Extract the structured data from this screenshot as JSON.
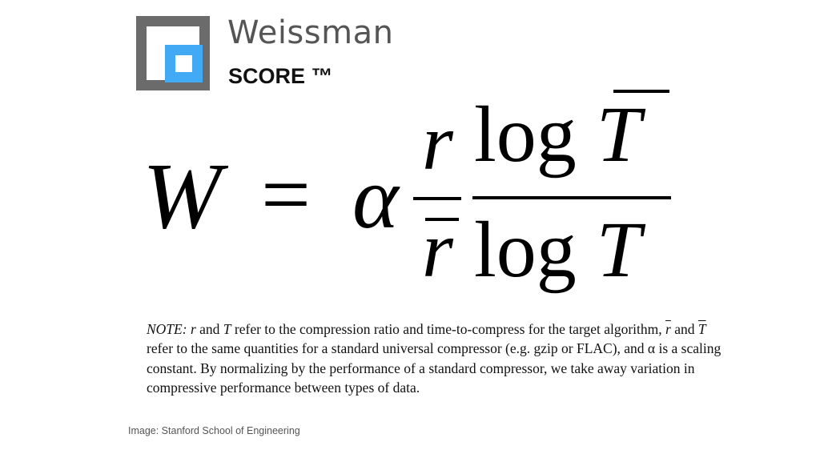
{
  "logo": {
    "brand": "Weissman",
    "subtitle": "SCORE ™",
    "colors": {
      "frame": "#6b6b6b",
      "accent": "#42aaf5"
    }
  },
  "formula": {
    "lhs": "W",
    "equals": "=",
    "alpha": "α",
    "ratio_num": "r",
    "ratio_den": "r",
    "log_num_fn": "log",
    "log_num_var": "T",
    "log_den_fn": "log",
    "log_den_var": "T"
  },
  "note": {
    "label": "NOTE:",
    "r": "r",
    "and1": " and ",
    "T": "T",
    "p1": " refer to the compression ratio and time-to-compress for the target algorithm,",
    "rbar": "r",
    "and2": " and ",
    "Tbar": "T",
    "p2": " refer to the same quantities for a standard universal compressor (e.g. gzip or FLAC), and α is a scaling constant. By normalizing by the performance of a standard compressor, we take away variation in compressive performance between types of data."
  },
  "caption": "Image: Stanford School of Engineering"
}
